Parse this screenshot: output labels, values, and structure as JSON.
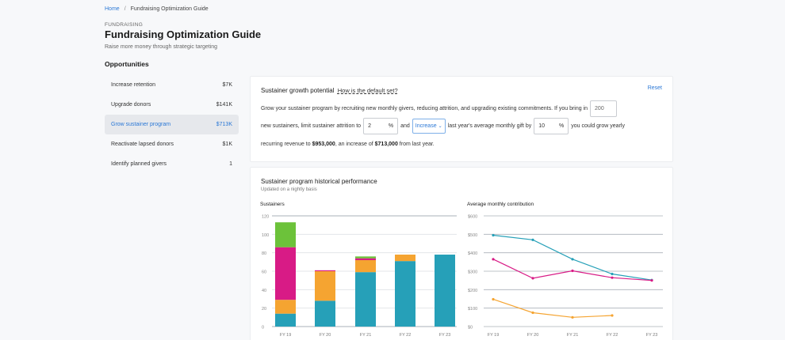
{
  "breadcrumb": {
    "home": "Home",
    "separator": "/",
    "current": "Fundraising Optimization Guide"
  },
  "header": {
    "eyebrow": "FUNDRAISING",
    "title": "Fundraising Optimization Guide",
    "subtitle": "Raise more money through strategic targeting"
  },
  "sidebar": {
    "title": "Opportunities",
    "items": [
      {
        "label": "Increase retention",
        "value": "$7K",
        "active": false
      },
      {
        "label": "Upgrade donors",
        "value": "$141K",
        "active": false
      },
      {
        "label": "Grow sustainer program",
        "value": "$713K",
        "active": true
      },
      {
        "label": "Reactivate lapsed donors",
        "value": "$1K",
        "active": false
      },
      {
        "label": "Identify planned givers",
        "value": "1",
        "active": false
      }
    ]
  },
  "potential": {
    "title": "Sustainer growth potential",
    "help_link": "How is the default set?",
    "reset": "Reset",
    "text1": "Grow your sustainer program by recruiting new monthly givers, reducing attrition, and upgrading existing commitments. If you bring in",
    "new_sustainers_value": "200",
    "text2": "new sustainers, limit sustainer attrition to",
    "attrition_value": "2",
    "percent_sign": "%",
    "text3": "and",
    "direction_value": "Increase",
    "text4": "last year's average monthly gift by",
    "gift_change_value": "10",
    "text5": "you could grow yearly",
    "text6": "recurring revenue to",
    "revenue_total": "$953,000",
    "text7": ", an increase of",
    "revenue_increase": "$713,000",
    "text8": "from last year."
  },
  "history": {
    "title": "Sustainer program historical performance",
    "subtitle": "Updated on a nightly basis"
  },
  "colors": {
    "teal": "#26a0b8",
    "orange": "#f5a431",
    "magenta": "#d81b86",
    "green": "#6cc23a",
    "accent": "#2b78d6"
  },
  "chart_data": [
    {
      "type": "bar",
      "stacked": true,
      "title": "Sustainers",
      "categories": [
        "FY 19",
        "FY 20",
        "FY 21",
        "FY 22",
        "FY 23"
      ],
      "yticks": [
        "0",
        "20",
        "40",
        "60",
        "80",
        "100",
        "120"
      ],
      "ylim": [
        0,
        120
      ],
      "grid": true,
      "series": [
        {
          "name": "teal",
          "color": "#26a0b8",
          "values": [
            14,
            28,
            59,
            71,
            78
          ]
        },
        {
          "name": "orange",
          "color": "#f5a431",
          "values": [
            15,
            32,
            13,
            7,
            0
          ]
        },
        {
          "name": "magenta",
          "color": "#d81b86",
          "values": [
            57,
            1,
            2,
            0,
            0
          ]
        },
        {
          "name": "green",
          "color": "#6cc23a",
          "values": [
            27,
            0,
            2,
            0,
            0
          ]
        }
      ]
    },
    {
      "type": "line",
      "title": "Average monthly contribution",
      "categories": [
        "FY 19",
        "FY 20",
        "FY 21",
        "FY 22",
        "FY 23"
      ],
      "yticks": [
        "$0",
        "$100",
        "$200",
        "$300",
        "$400",
        "$500",
        "$600"
      ],
      "ylim": [
        0,
        600
      ],
      "grid": true,
      "series": [
        {
          "name": "teal",
          "color": "#26a0b8",
          "values": [
            495,
            470,
            365,
            285,
            252
          ]
        },
        {
          "name": "magenta",
          "color": "#d81b86",
          "values": [
            365,
            262,
            302,
            265,
            250
          ]
        },
        {
          "name": "orange",
          "color": "#f5a431",
          "values": [
            148,
            75,
            50,
            60,
            null
          ]
        }
      ]
    }
  ]
}
